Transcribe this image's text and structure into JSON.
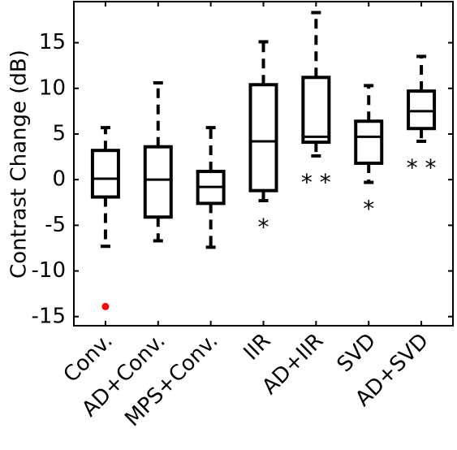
{
  "chart_data": {
    "type": "box",
    "title": "",
    "xlabel": "",
    "ylabel": "Contrast Change (dB)",
    "ylim": [
      -16,
      19.5
    ],
    "yticks": [
      -15,
      -10,
      -5,
      0,
      5,
      10,
      15
    ],
    "ytick_labels": [
      "-15",
      "-10",
      "-5",
      "0",
      "5",
      "10",
      "15"
    ],
    "categories": [
      "Conv.",
      "AD+Conv.",
      "MPS+Conv.",
      "IIR",
      "AD+IIR",
      "SVD",
      "AD+SVD"
    ],
    "boxes": [
      {
        "label": "Conv.",
        "whisker_low": -7.3,
        "q1": -1.9,
        "median": 0.1,
        "q3": 3.2,
        "whisker_high": 5.7,
        "outliers": [
          -13.9
        ],
        "significance": ""
      },
      {
        "label": "AD+Conv.",
        "whisker_low": -6.7,
        "q1": -4.1,
        "median": 0.0,
        "q3": 3.6,
        "whisker_high": 10.6,
        "outliers": [],
        "significance": ""
      },
      {
        "label": "MPS+Conv.",
        "whisker_low": -7.4,
        "q1": -2.6,
        "median": -0.8,
        "q3": 0.9,
        "whisker_high": 5.7,
        "outliers": [],
        "significance": ""
      },
      {
        "label": "IIR",
        "whisker_low": -2.3,
        "q1": -1.2,
        "median": 4.2,
        "q3": 10.4,
        "whisker_high": 15.1,
        "outliers": [],
        "significance": "*"
      },
      {
        "label": "AD+IIR",
        "whisker_low": 2.6,
        "q1": 4.1,
        "median": 4.7,
        "q3": 11.2,
        "whisker_high": 18.3,
        "outliers": [],
        "significance": "**"
      },
      {
        "label": "SVD",
        "whisker_low": -0.3,
        "q1": 1.8,
        "median": 4.7,
        "q3": 6.4,
        "whisker_high": 10.3,
        "outliers": [],
        "significance": "*"
      },
      {
        "label": "AD+SVD",
        "whisker_low": 4.2,
        "q1": 5.6,
        "median": 7.5,
        "q3": 9.7,
        "whisker_high": 13.5,
        "outliers": [],
        "significance": "**"
      }
    ],
    "colors": {
      "box": "#000000",
      "outlier": "#ff0000"
    },
    "grid": false,
    "legend": "none"
  }
}
